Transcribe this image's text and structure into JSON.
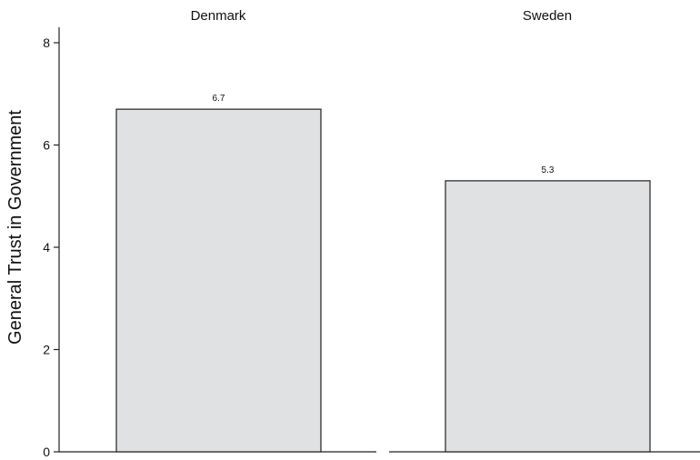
{
  "chart_data": {
    "type": "bar",
    "ylabel": "General Trust in Government",
    "ylim": [
      0,
      8
    ],
    "yticks": [
      0,
      2,
      4,
      6,
      8
    ],
    "grid": false,
    "panels": [
      {
        "title": "Denmark",
        "value": 6.7,
        "value_label": "6.7"
      },
      {
        "title": "Sweden",
        "value": 5.3,
        "value_label": "5.3"
      }
    ],
    "colors": {
      "bar_fill": "#e0e1e3",
      "bar_stroke": "#222222"
    }
  }
}
